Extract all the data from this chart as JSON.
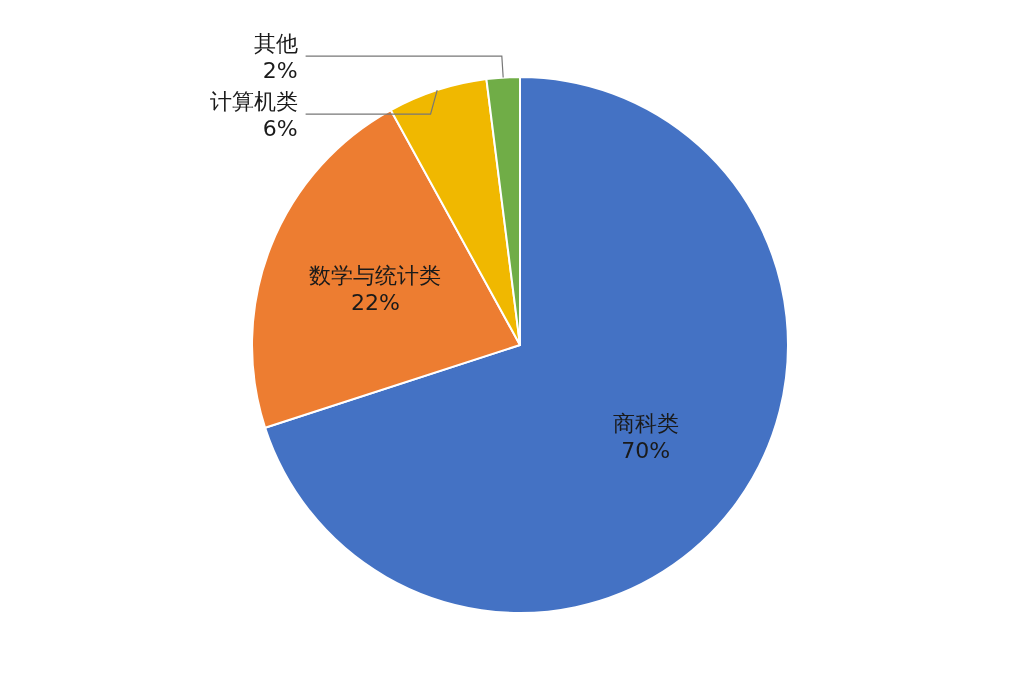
{
  "chart_data": {
    "type": "pie",
    "categories": [
      "商科类",
      "数学与统计类",
      "计算机类",
      "其他"
    ],
    "values": [
      70,
      22,
      6,
      2
    ],
    "value_labels": [
      "70%",
      "22%",
      "6%",
      "2%"
    ],
    "colors": [
      "#4472c4",
      "#ed7d31",
      "#f0b800",
      "#70ad47"
    ]
  }
}
